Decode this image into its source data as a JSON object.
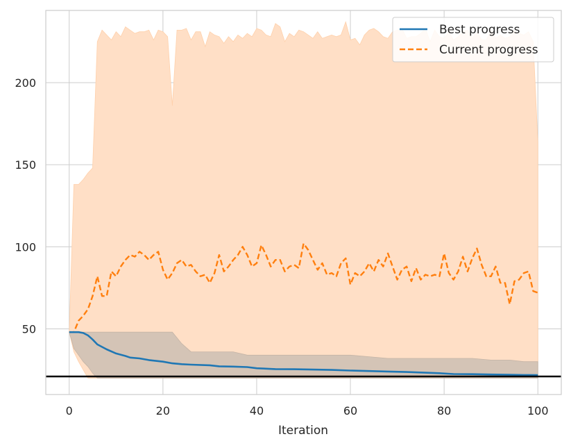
{
  "chart_data": {
    "type": "line",
    "title": "",
    "xlabel": "Iteration",
    "ylabel": "",
    "xlim": [
      -5,
      105
    ],
    "ylim": [
      10,
      244
    ],
    "xticks": [
      0,
      20,
      40,
      60,
      80,
      100
    ],
    "yticks": [
      50,
      100,
      150,
      200
    ],
    "grid": true,
    "legend_position": "top-right",
    "reference_line": 21,
    "colors": {
      "best": "#1f77b4",
      "current": "#ff7f0e",
      "current_band": "#ffdfc6",
      "best_band": "#cdbfb3",
      "reference": "#000000",
      "grid": "#cccccc",
      "frame": "#cccccc"
    },
    "series": [
      {
        "name": "Best progress",
        "style": "solid",
        "x": [
          0,
          1,
          2,
          3,
          4,
          5,
          6,
          8,
          10,
          12,
          13,
          15,
          17,
          20,
          22,
          24,
          26,
          30,
          32,
          35,
          38,
          40,
          44,
          48,
          52,
          56,
          60,
          64,
          68,
          72,
          76,
          79,
          82,
          86,
          90,
          94,
          97,
          100
        ],
        "y": [
          48,
          48,
          48,
          47.5,
          46,
          43.5,
          40.5,
          37.5,
          35,
          33.5,
          32.5,
          32,
          31,
          30,
          29,
          28.5,
          28.2,
          27.8,
          27.2,
          27,
          26.7,
          26,
          25.5,
          25.4,
          25.2,
          25,
          24.6,
          24.3,
          24,
          23.7,
          23.3,
          23,
          22.5,
          22.4,
          22.2,
          22,
          21.9,
          21.8
        ],
        "band_upper": [
          48,
          48,
          48,
          48,
          48,
          48,
          48,
          48,
          48,
          48,
          48,
          48,
          48,
          48,
          48,
          41,
          36,
          36,
          36,
          36,
          34,
          34,
          34,
          34,
          34,
          34,
          34,
          33,
          32,
          32,
          32,
          32,
          32,
          32,
          31,
          31,
          30,
          30
        ],
        "band_lower": [
          48,
          38,
          34,
          30,
          27,
          23,
          20,
          20,
          20,
          20,
          20,
          20,
          20,
          20,
          20,
          20,
          20,
          20,
          20,
          20,
          20,
          20,
          20,
          20,
          20,
          20,
          20,
          20,
          20,
          20,
          20,
          20,
          20,
          20,
          20,
          20,
          20,
          20
        ]
      },
      {
        "name": "Current progress",
        "style": "dashed",
        "x": [
          0,
          1,
          2,
          3,
          4,
          5,
          6,
          7,
          8,
          9,
          10,
          11,
          12,
          13,
          14,
          15,
          16,
          17,
          18,
          19,
          20,
          21,
          22,
          23,
          24,
          25,
          26,
          27,
          28,
          29,
          30,
          31,
          32,
          33,
          34,
          35,
          36,
          37,
          38,
          39,
          40,
          41,
          42,
          43,
          44,
          45,
          46,
          47,
          48,
          49,
          50,
          51,
          52,
          53,
          54,
          55,
          56,
          57,
          58,
          59,
          60,
          61,
          62,
          63,
          64,
          65,
          66,
          67,
          68,
          69,
          70,
          71,
          72,
          73,
          74,
          75,
          76,
          77,
          78,
          79,
          80,
          81,
          82,
          83,
          84,
          85,
          86,
          87,
          88,
          89,
          90,
          91,
          92,
          93,
          94,
          95,
          96,
          97,
          98,
          99,
          100
        ],
        "y": [
          48,
          48,
          55,
          58,
          62,
          70,
          82,
          70,
          70,
          85,
          82,
          88,
          92,
          95,
          94,
          97,
          95,
          92,
          95,
          97,
          86,
          80,
          84,
          90,
          92,
          88,
          89,
          85,
          82,
          83,
          78,
          84,
          95,
          85,
          88,
          92,
          95,
          100,
          95,
          88,
          90,
          101,
          95,
          88,
          92,
          92,
          85,
          88,
          89,
          87,
          102,
          98,
          92,
          86,
          90,
          83,
          84,
          82,
          90,
          93,
          77,
          84,
          82,
          85,
          90,
          85,
          92,
          88,
          96,
          88,
          80,
          86,
          88,
          79,
          87,
          80,
          83,
          82,
          83,
          82,
          96,
          84,
          80,
          85,
          94,
          85,
          93,
          99,
          89,
          82,
          82,
          88,
          78,
          78,
          65,
          79,
          80,
          84,
          85,
          73,
          72
        ],
        "band_upper": [
          48,
          138,
          138,
          141,
          145,
          148,
          225,
          232,
          229,
          226,
          231,
          228,
          234,
          232,
          230,
          231,
          231,
          232,
          226,
          232,
          231,
          228,
          186,
          232,
          232,
          233,
          226,
          231,
          231,
          222,
          231,
          229,
          228,
          224,
          228,
          225,
          229,
          227,
          230,
          228,
          233,
          232,
          229,
          228,
          236,
          234,
          225,
          230,
          228,
          232,
          231,
          229,
          227,
          231,
          227,
          228,
          229,
          228,
          229,
          237,
          226,
          227,
          223,
          229,
          232,
          233,
          231,
          228,
          227,
          231,
          232,
          233,
          227,
          228,
          228,
          230,
          233,
          225,
          232,
          228,
          227,
          231,
          226,
          228,
          231,
          232,
          227,
          231,
          226,
          226,
          232,
          227,
          229,
          227,
          228,
          232,
          230,
          229,
          231,
          225,
          164
        ],
        "band_lower": [
          48,
          36,
          30,
          25,
          20,
          20,
          20,
          20,
          20,
          20,
          20,
          20,
          20,
          20,
          20,
          20,
          20,
          20,
          20,
          20,
          20,
          20,
          20,
          20,
          20,
          20,
          20,
          20,
          20,
          20,
          20,
          20,
          20,
          20,
          20,
          20,
          20,
          20,
          20,
          20,
          20,
          20,
          20,
          20,
          20,
          20,
          20,
          20,
          20,
          20,
          20,
          20,
          20,
          20,
          20,
          20,
          20,
          20,
          20,
          20,
          20,
          20,
          20,
          20,
          20,
          20,
          20,
          20,
          20,
          20,
          20,
          20,
          20,
          20,
          20,
          20,
          20,
          20,
          20,
          20,
          20,
          20,
          20,
          20,
          20,
          20,
          20,
          20,
          20,
          20,
          20,
          20,
          20,
          20,
          20,
          20,
          20,
          20,
          20,
          20,
          20
        ]
      }
    ]
  }
}
